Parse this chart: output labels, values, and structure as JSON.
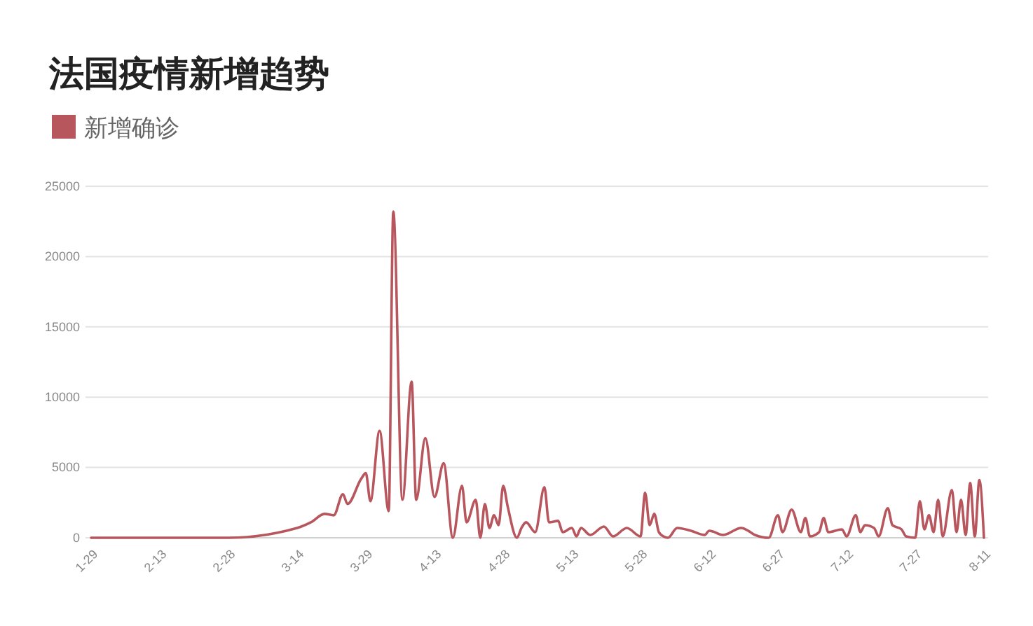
{
  "chart_data": {
    "type": "line",
    "title": "法国疫情新增趋势",
    "legend": "top left",
    "grid": "y",
    "xlim": [
      "--01-29",
      "--08-11"
    ],
    "xticks": [
      {
        "value": "--01-29",
        "label": "1-29"
      },
      {
        "value": "--02-13",
        "label": "2-13"
      },
      {
        "value": "--02-28",
        "label": "2-28"
      },
      {
        "value": "--03-14",
        "label": "3-14"
      },
      {
        "value": "--03-29",
        "label": "3-29"
      },
      {
        "value": "--04-13",
        "label": "4-13"
      },
      {
        "value": "--04-28",
        "label": "4-28"
      },
      {
        "value": "--05-13",
        "label": "5-13"
      },
      {
        "value": "--05-28",
        "label": "5-28"
      },
      {
        "value": "--06-12",
        "label": "6-12"
      },
      {
        "value": "--06-27",
        "label": "6-27"
      },
      {
        "value": "--07-12",
        "label": "7-12"
      },
      {
        "value": "--07-27",
        "label": "7-27"
      },
      {
        "value": "--08-11",
        "label": "8-11"
      }
    ],
    "ylim": [
      0,
      25000
    ],
    "yticks": [
      0,
      5000,
      10000,
      15000,
      20000,
      25000
    ],
    "x": [
      "--01-29",
      "--02-13",
      "--02-28",
      "--03-14",
      "--03-17",
      "--03-20",
      "--03-22",
      "--03-24",
      "--03-25",
      "--03-28",
      "--03-29",
      "--03-30",
      "--04-01",
      "--04-03",
      "--04-04",
      "--04-06",
      "--04-08",
      "--04-09",
      "--04-11",
      "--04-13",
      "--04-15",
      "--04-17",
      "--04-19",
      "--04-20",
      "--04-22",
      "--04-23",
      "--04-24",
      "--04-25",
      "--04-26",
      "--04-27",
      "--04-28",
      "--04-29",
      "--05-01",
      "--05-02",
      "--05-03",
      "--05-05",
      "--05-07",
      "--05-08",
      "--05-10",
      "--05-11",
      "--05-13",
      "--05-14",
      "--05-15",
      "--05-17",
      "--05-20",
      "--05-22",
      "--05-25",
      "--05-28",
      "--05-29",
      "--05-30",
      "--05-31",
      "--06-01",
      "--06-02",
      "--06-03",
      "--06-05",
      "--06-08",
      "--06-11",
      "--06-12",
      "--06-15",
      "--06-19",
      "--06-21",
      "--06-22",
      "--06-25",
      "--06-27",
      "--06-28",
      "--06-30",
      "--07-02",
      "--07-03",
      "--07-04",
      "--07-06",
      "--07-07",
      "--07-08",
      "--07-11",
      "--07-12",
      "--07-14",
      "--07-15",
      "--07-16",
      "--07-18",
      "--07-19",
      "--07-21",
      "--07-22",
      "--07-24",
      "--07-25",
      "--07-27",
      "--07-28",
      "--07-29",
      "--07-30",
      "--07-31",
      "--08-01",
      "--08-02",
      "--08-04",
      "--08-05",
      "--08-06",
      "--08-07",
      "--08-08",
      "--08-09",
      "--08-10",
      "--08-11"
    ],
    "series": [
      {
        "name": "新增确诊",
        "color": "#b8565e",
        "values": [
          0,
          0,
          0,
          700,
          1100,
          1700,
          1600,
          3100,
          2400,
          4200,
          4600,
          2600,
          7600,
          1900,
          23200,
          2700,
          11100,
          2700,
          7100,
          2900,
          5300,
          0,
          3700,
          1100,
          2700,
          0,
          2400,
          700,
          1600,
          900,
          3700,
          2200,
          0,
          700,
          1100,
          400,
          3600,
          1100,
          1200,
          400,
          700,
          100,
          700,
          200,
          800,
          100,
          700,
          100,
          3200,
          900,
          1700,
          400,
          100,
          0,
          700,
          500,
          200,
          500,
          200,
          700,
          400,
          200,
          0,
          1600,
          400,
          2000,
          400,
          1400,
          100,
          400,
          1400,
          400,
          600,
          100,
          1600,
          400,
          900,
          700,
          100,
          2100,
          900,
          600,
          100,
          0,
          2600,
          600,
          1600,
          400,
          2700,
          100,
          3400,
          400,
          2700,
          200,
          3900,
          100,
          4100,
          0
        ]
      }
    ]
  }
}
